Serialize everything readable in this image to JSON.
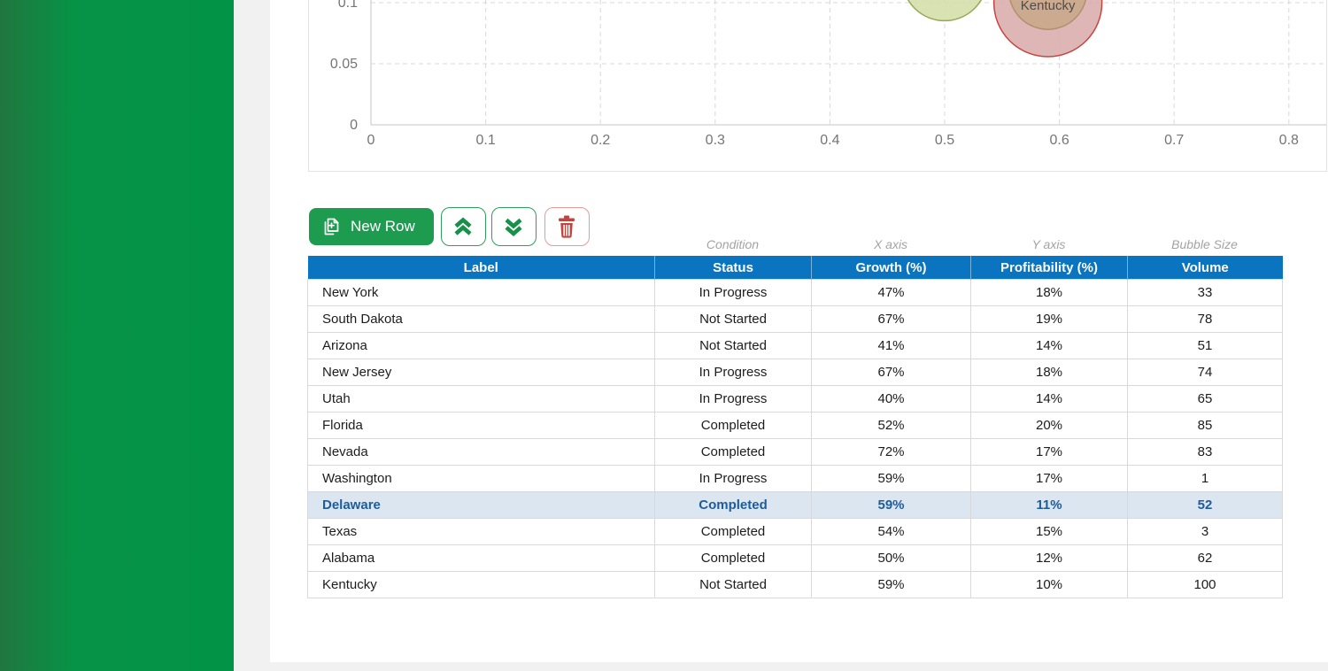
{
  "theme": {
    "sidebar_gradient_from": "#21763f",
    "sidebar_gradient_to": "#029347",
    "page_bg": "#f1f1f1",
    "content_bg": "#ffffff",
    "table_header_bg": "#0b74c0",
    "table_header_text": "#ffffff",
    "selected_row_bg": "#dce6f1",
    "selected_row_text": "#1f5c9a",
    "new_row_button_bg": "#1d9c4f",
    "outline_button_green": "#2f9e5c",
    "outline_icon_green": "#17914a",
    "outline_button_red": "#e59a9a",
    "outline_icon_red": "#c2443f",
    "grid_line": "#d8d8d8",
    "axis_line": "#c6c6c6",
    "tick_text": "#757575",
    "annotation_text": "#a3a3a3"
  },
  "toolbar": {
    "new_row_label": "New Row",
    "icons": [
      "add-row-icon",
      "chevron-double-up-icon",
      "chevron-double-down-icon",
      "trash-icon"
    ]
  },
  "table": {
    "annotations": [
      "",
      "Condition",
      "X axis",
      "Y axis",
      "Bubble Size"
    ],
    "columns": [
      "Label",
      "Status",
      "Growth (%)",
      "Profitability (%)",
      "Volume"
    ],
    "rows": [
      {
        "label": "New York",
        "status": "In Progress",
        "growth": "47%",
        "profitability": "18%",
        "volume": "33",
        "selected": false
      },
      {
        "label": "South Dakota",
        "status": "Not Started",
        "growth": "67%",
        "profitability": "19%",
        "volume": "78",
        "selected": false
      },
      {
        "label": "Arizona",
        "status": "Not Started",
        "growth": "41%",
        "profitability": "14%",
        "volume": "51",
        "selected": false
      },
      {
        "label": "New Jersey",
        "status": "In Progress",
        "growth": "67%",
        "profitability": "18%",
        "volume": "74",
        "selected": false
      },
      {
        "label": "Utah",
        "status": "In Progress",
        "growth": "40%",
        "profitability": "14%",
        "volume": "65",
        "selected": false
      },
      {
        "label": "Florida",
        "status": "Completed",
        "growth": "52%",
        "profitability": "20%",
        "volume": "85",
        "selected": false
      },
      {
        "label": "Nevada",
        "status": "Completed",
        "growth": "72%",
        "profitability": "17%",
        "volume": "83",
        "selected": false
      },
      {
        "label": "Washington",
        "status": "In Progress",
        "growth": "59%",
        "profitability": "17%",
        "volume": "1",
        "selected": false
      },
      {
        "label": "Delaware",
        "status": "Completed",
        "growth": "59%",
        "profitability": "11%",
        "volume": "52",
        "selected": true
      },
      {
        "label": "Texas",
        "status": "Completed",
        "growth": "54%",
        "profitability": "15%",
        "volume": "3",
        "selected": false
      },
      {
        "label": "Alabama",
        "status": "Completed",
        "growth": "50%",
        "profitability": "12%",
        "volume": "62",
        "selected": false
      },
      {
        "label": "Kentucky",
        "status": "Not Started",
        "growth": "59%",
        "profitability": "10%",
        "volume": "100",
        "selected": false
      }
    ]
  },
  "chart_data": {
    "type": "scatter",
    "subtype": "bubble",
    "x_axis_source_column": "Growth (%)",
    "y_axis_source_column": "Profitability (%)",
    "size_source_column": "Volume",
    "x_ticks": [
      0,
      0.1,
      0.2,
      0.3,
      0.4,
      0.5,
      0.6,
      0.7,
      0.8
    ],
    "x_tick_labels": [
      "0",
      "0.1",
      "0.2",
      "0.3",
      "0.4",
      "0.5",
      "0.6",
      "0.7",
      "0.8"
    ],
    "y_ticks_visible": [
      0,
      0.05,
      0.1
    ],
    "y_tick_labels": [
      "0",
      "0.05",
      "0.1"
    ],
    "grid": "dashed",
    "points": [
      {
        "label": "New York",
        "x": 0.47,
        "y": 0.18,
        "size": 33
      },
      {
        "label": "South Dakota",
        "x": 0.67,
        "y": 0.19,
        "size": 78
      },
      {
        "label": "Arizona",
        "x": 0.41,
        "y": 0.14,
        "size": 51
      },
      {
        "label": "New Jersey",
        "x": 0.67,
        "y": 0.18,
        "size": 74
      },
      {
        "label": "Utah",
        "x": 0.4,
        "y": 0.14,
        "size": 65
      },
      {
        "label": "Florida",
        "x": 0.52,
        "y": 0.2,
        "size": 85
      },
      {
        "label": "Nevada",
        "x": 0.72,
        "y": 0.17,
        "size": 83
      },
      {
        "label": "Washington",
        "x": 0.59,
        "y": 0.17,
        "size": 1
      },
      {
        "label": "Delaware",
        "x": 0.59,
        "y": 0.11,
        "size": 52
      },
      {
        "label": "Texas",
        "x": 0.54,
        "y": 0.15,
        "size": 3
      },
      {
        "label": "Alabama",
        "x": 0.5,
        "y": 0.12,
        "size": 62
      },
      {
        "label": "Kentucky",
        "x": 0.59,
        "y": 0.1,
        "size": 100
      }
    ],
    "visible_bubbles": [
      {
        "label": "Alabama",
        "x": 0.5,
        "y": 0.12,
        "size": 62,
        "fill": "#d5dfab",
        "stroke": "#93aa50",
        "show_label": false
      },
      {
        "label": "Kentucky",
        "x": 0.59,
        "y": 0.1,
        "size": 100,
        "fill": "#dcaeae",
        "stroke": "#c8453f",
        "show_label": true
      },
      {
        "label": "Delaware",
        "x": 0.59,
        "y": 0.11,
        "size": 52,
        "fill": "#c9a98b",
        "stroke": "#b3906b",
        "show_label": false
      }
    ]
  }
}
